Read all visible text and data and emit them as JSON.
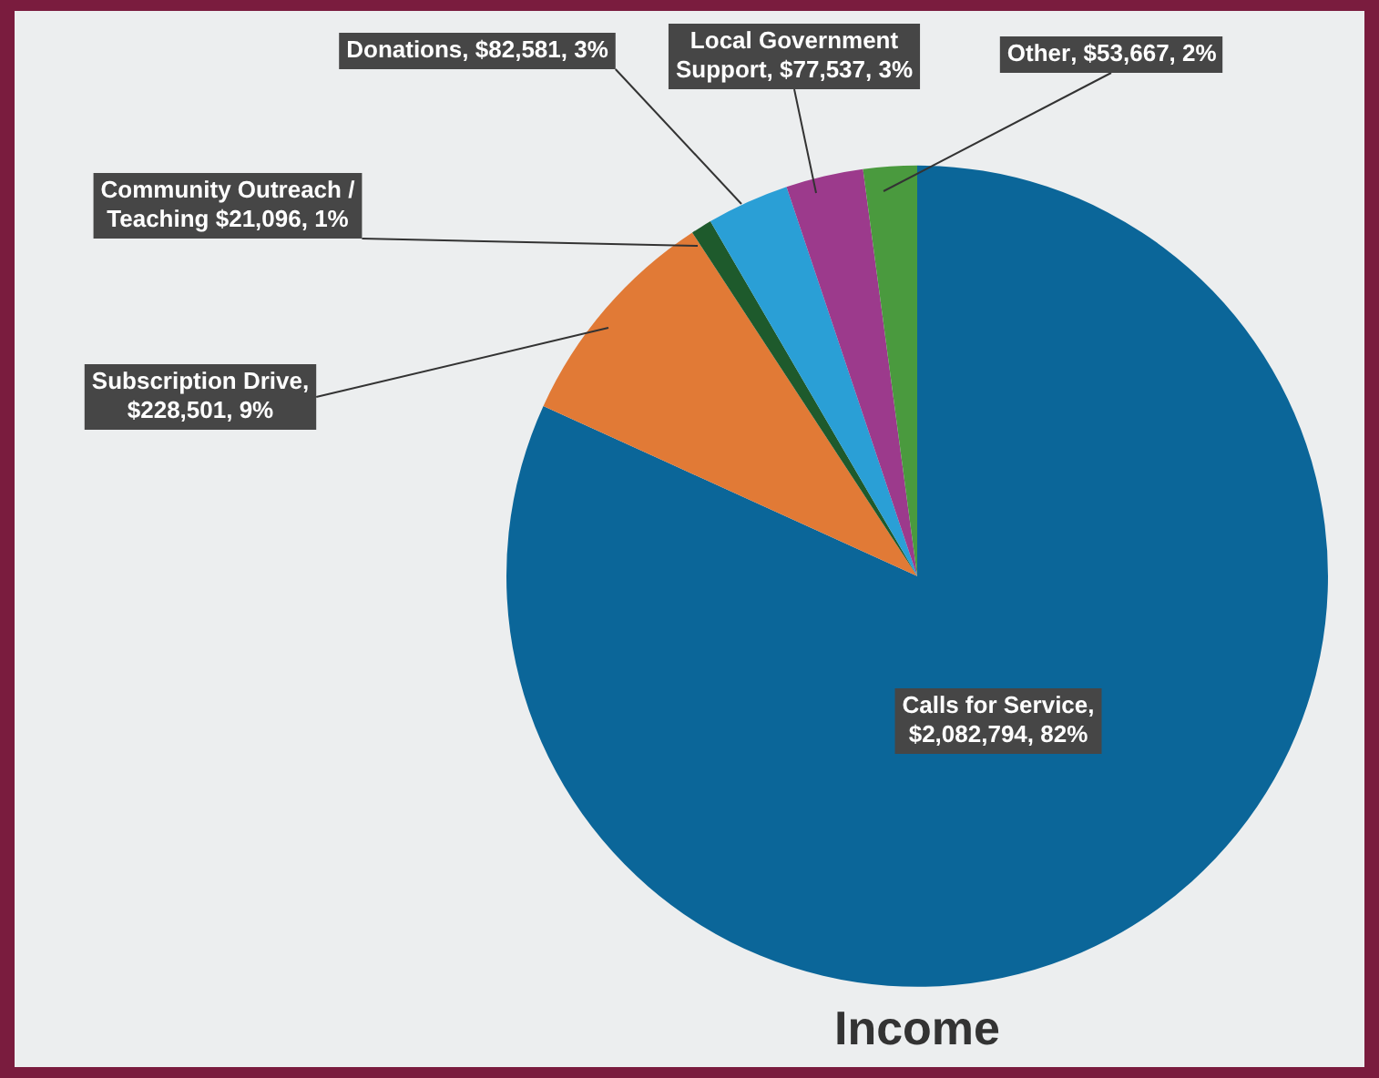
{
  "chart_data": {
    "type": "pie",
    "title": "Income",
    "categories": [
      "Calls for Service",
      "Subscription Drive",
      "Community Outreach / Teaching",
      "Donations",
      "Local Government Support",
      "Other"
    ],
    "values": [
      2082794,
      228501,
      21096,
      82581,
      77537,
      53667
    ],
    "colors": [
      "#0b6699",
      "#e17a36",
      "#1e5a2c",
      "#2a9fd6",
      "#9c3a8c",
      "#4a9a3e"
    ],
    "value_labels": [
      ", $2,082,794, 82%",
      ", $228,501, 9%",
      " $21,096, 1%",
      ", $82,581, 3%",
      ", $77,537, 3%",
      ", $53,667, 2%"
    ],
    "legend": false
  }
}
